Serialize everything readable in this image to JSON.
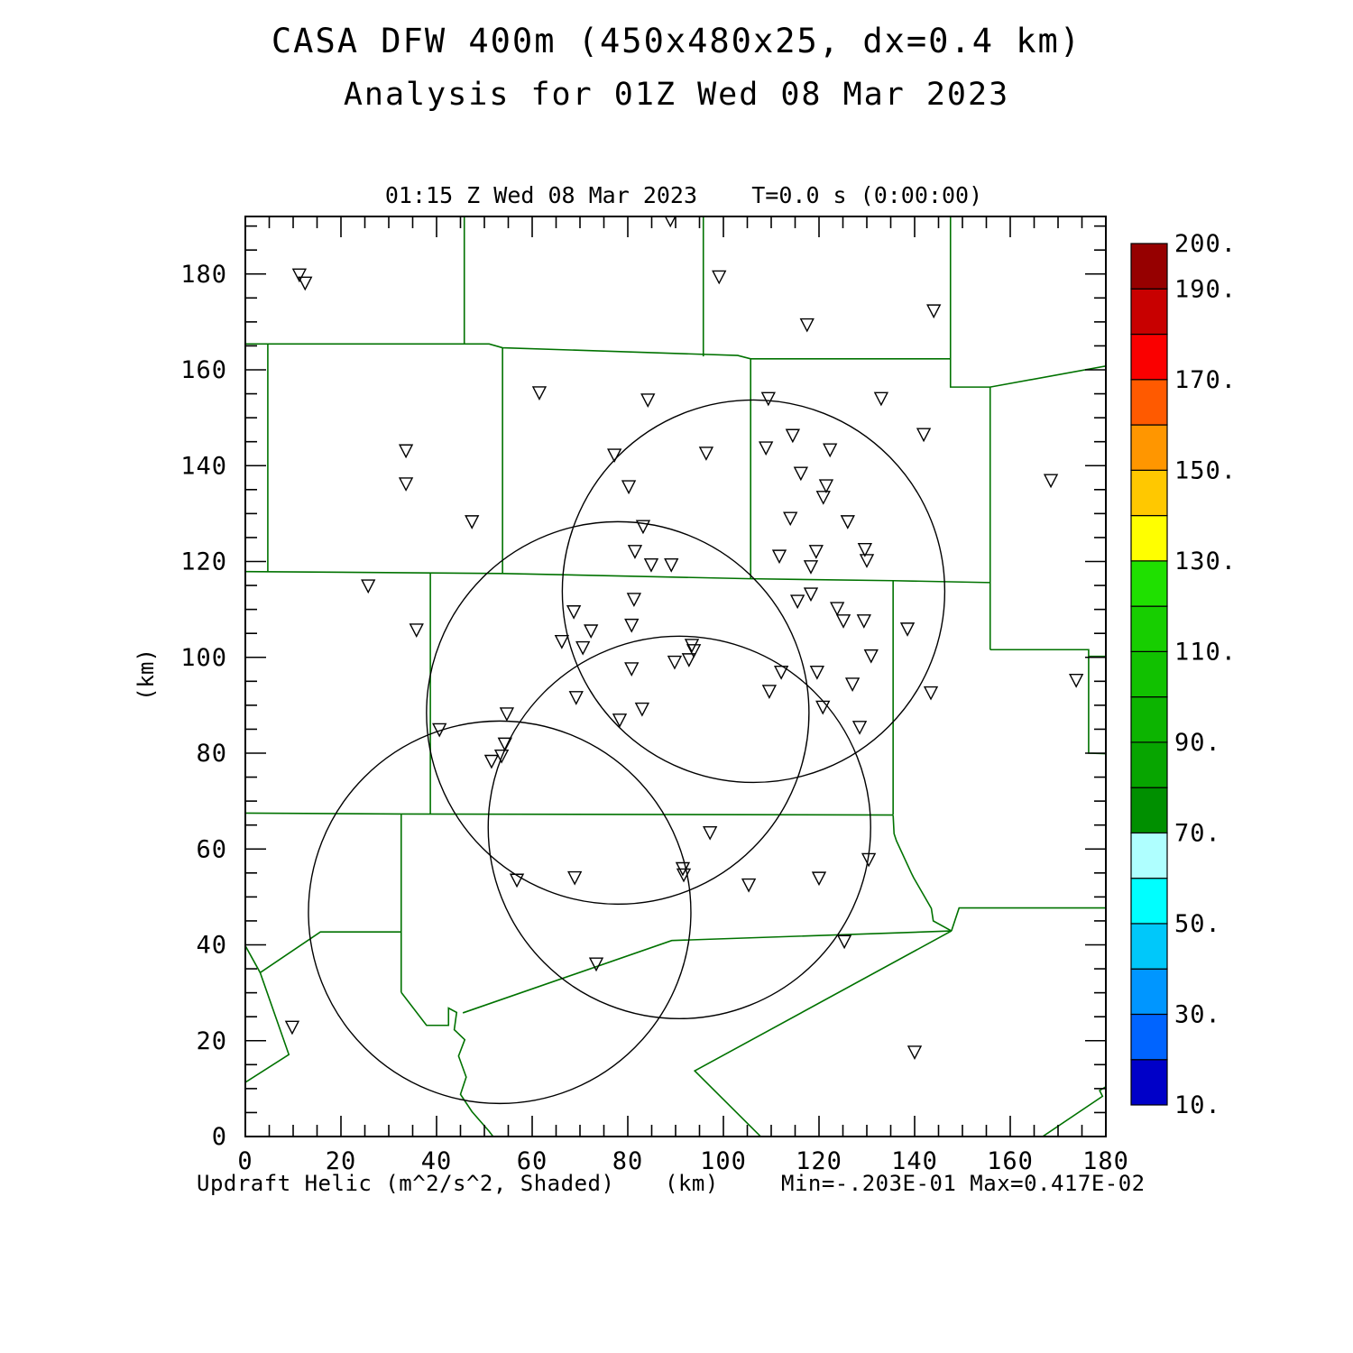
{
  "header": {
    "title": "CASA DFW 400m (450x480x25, dx=0.4 km)",
    "subtitle": "Analysis for 01Z Wed 08 Mar 2023"
  },
  "plot": {
    "time_label": "01:15 Z Wed 08 Mar 2023    T=0.0 s (0:00:00)",
    "y_unit": "(km)",
    "x_unit": "(km)"
  },
  "footer": {
    "field_label": "Updraft Helic (m^2/s^2, Shaded)",
    "x_unit": "(km)",
    "minmax": "Min=-.203E-01 Max=0.417E-02"
  },
  "colors": {
    "county_line": "#007200",
    "frame": "#000000",
    "marker": "#000000",
    "circle": "#000000",
    "text": "#000000",
    "background": "#ffffff"
  },
  "chart_data": {
    "type": "scatter",
    "title": "CASA DFW 400m (450x480x25, dx=0.4 km)",
    "subtitle": "Analysis for 01Z Wed 08 Mar 2023",
    "time_annotation": "01:15 Z Wed 08 Mar 2023    T=0.0 s (0:00:00)",
    "field": "Updraft Helic (m^2/s^2, Shaded)",
    "min_annotation": "Min=-.203E-01",
    "max_annotation": "Max=0.417E-02",
    "xlabel": "(km)",
    "ylabel": "(km)",
    "xlim": [
      0,
      180
    ],
    "ylim": [
      0,
      192
    ],
    "x_major_tick": 20,
    "x_minor_tick": 5,
    "y_major_tick": 20,
    "y_minor_tick": 5,
    "x_tick_labels": [
      0,
      20,
      40,
      60,
      80,
      100,
      120,
      140,
      160,
      180
    ],
    "y_tick_labels": [
      0,
      20,
      40,
      60,
      80,
      100,
      120,
      140,
      160,
      180
    ],
    "grid": false,
    "colorbar": {
      "min": 10,
      "max": 200,
      "step": 10,
      "labeled_values": [
        200,
        190,
        170,
        150,
        130,
        110,
        90,
        70,
        50,
        30,
        10
      ],
      "cell_colors_bottom_to_top": [
        "#0000C8",
        "#0064FF",
        "#0096FF",
        "#00C8FA",
        "#00FFFF",
        "#AFFFFF",
        "#008F00",
        "#07A500",
        "#0CB400",
        "#11C100",
        "#17CE00",
        "#1FE000",
        "#FFFF00",
        "#FFC800",
        "#FF9600",
        "#FF5A00",
        "#FA0000",
        "#C80000",
        "#960000"
      ]
    },
    "radar_range_rings_km": {
      "radius": 40,
      "centers": [
        [
          106.3,
          113.8
        ],
        [
          77.9,
          88.4
        ],
        [
          90.8,
          64.5
        ],
        [
          53.2,
          46.8
        ]
      ]
    },
    "marker_symbol": "open-down-triangle",
    "markers_km": [
      [
        11.3,
        179.9
      ],
      [
        12.5,
        178.2
      ],
      [
        88.9,
        191.4
      ],
      [
        99.1,
        179.5
      ],
      [
        144.0,
        172.4
      ],
      [
        117.5,
        169.5
      ],
      [
        61.5,
        155.3
      ],
      [
        109.4,
        154.1
      ],
      [
        84.2,
        153.8
      ],
      [
        133.0,
        154.1
      ],
      [
        141.9,
        146.6
      ],
      [
        114.5,
        146.4
      ],
      [
        33.6,
        143.2
      ],
      [
        108.9,
        143.8
      ],
      [
        96.4,
        142.7
      ],
      [
        122.3,
        143.4
      ],
      [
        116.2,
        138.5
      ],
      [
        33.6,
        136.3
      ],
      [
        168.5,
        137.0
      ],
      [
        77.2,
        142.3
      ],
      [
        121.5,
        135.9
      ],
      [
        120.9,
        133.5
      ],
      [
        80.2,
        135.7
      ],
      [
        47.4,
        128.4
      ],
      [
        114.0,
        129.1
      ],
      [
        83.2,
        127.4
      ],
      [
        126.0,
        128.4
      ],
      [
        81.5,
        122.2
      ],
      [
        111.7,
        121.2
      ],
      [
        119.4,
        122.2
      ],
      [
        84.9,
        119.4
      ],
      [
        89.1,
        119.4
      ],
      [
        129.6,
        122.6
      ],
      [
        118.3,
        119.0
      ],
      [
        130.0,
        120.3
      ],
      [
        25.7,
        115.0
      ],
      [
        81.3,
        112.2
      ],
      [
        115.5,
        111.8
      ],
      [
        118.3,
        113.3
      ],
      [
        68.7,
        109.6
      ],
      [
        123.8,
        110.3
      ],
      [
        125.1,
        107.7
      ],
      [
        35.8,
        105.8
      ],
      [
        72.3,
        105.6
      ],
      [
        80.8,
        106.8
      ],
      [
        129.4,
        107.7
      ],
      [
        138.5,
        106.0
      ],
      [
        66.2,
        103.4
      ],
      [
        70.6,
        102.1
      ],
      [
        93.4,
        102.6
      ],
      [
        93.8,
        101.5
      ],
      [
        130.9,
        100.4
      ],
      [
        80.8,
        97.7
      ],
      [
        89.8,
        99.1
      ],
      [
        92.8,
        99.6
      ],
      [
        112.1,
        97.0
      ],
      [
        119.6,
        97.0
      ],
      [
        127.0,
        94.5
      ],
      [
        173.8,
        95.3
      ],
      [
        69.2,
        91.7
      ],
      [
        109.6,
        93.0
      ],
      [
        143.4,
        92.7
      ],
      [
        83.0,
        89.3
      ],
      [
        54.7,
        88.3
      ],
      [
        78.3,
        87.0
      ],
      [
        120.8,
        89.7
      ],
      [
        128.5,
        85.5
      ],
      [
        40.6,
        85.0
      ],
      [
        54.3,
        82.0
      ],
      [
        53.6,
        79.5
      ],
      [
        51.5,
        78.4
      ],
      [
        97.2,
        63.5
      ],
      [
        130.4,
        57.9
      ],
      [
        91.5,
        56.0
      ],
      [
        91.7,
        54.7
      ],
      [
        56.8,
        53.6
      ],
      [
        68.9,
        54.1
      ],
      [
        105.3,
        52.6
      ],
      [
        120.0,
        54.0
      ],
      [
        125.3,
        40.8
      ],
      [
        73.4,
        36.1
      ],
      [
        9.8,
        22.9
      ],
      [
        140.0,
        17.7
      ]
    ],
    "county_polylines_km": [
      [
        [
          45.8,
          192
        ],
        [
          45.8,
          165.3
        ]
      ],
      [
        [
          0,
          165.4
        ],
        [
          51,
          165.4
        ],
        [
          53.8,
          164.6
        ],
        [
          103,
          163
        ],
        [
          105.7,
          162.3
        ],
        [
          147.5,
          162.3
        ]
      ],
      [
        [
          95.8,
          192
        ],
        [
          95.8,
          162.8
        ]
      ],
      [
        [
          4.7,
          165.4
        ],
        [
          4.7,
          117.8
        ]
      ],
      [
        [
          53.8,
          164.6
        ],
        [
          53.8,
          117.6
        ]
      ],
      [
        [
          147.5,
          192
        ],
        [
          147.5,
          156.4
        ],
        [
          155.8,
          156.4
        ],
        [
          180,
          160.8
        ]
      ],
      [
        [
          105.7,
          162.3
        ],
        [
          105.7,
          116.4
        ]
      ],
      [
        [
          0,
          117.9
        ],
        [
          53.8,
          117.5
        ],
        [
          105.7,
          116.4
        ],
        [
          135.5,
          116.0
        ],
        [
          155.8,
          115.6
        ]
      ],
      [
        [
          155.8,
          156.4
        ],
        [
          155.8,
          101.6
        ]
      ],
      [
        [
          155.8,
          101.6
        ],
        [
          176.4,
          101.6
        ],
        [
          176.4,
          100.2
        ],
        [
          180,
          100.2
        ]
      ],
      [
        [
          135.5,
          116.0
        ],
        [
          135.5,
          67.2
        ]
      ],
      [
        [
          176.4,
          100.2
        ],
        [
          176.4,
          80.0
        ],
        [
          180,
          79.9
        ]
      ],
      [
        [
          0,
          67.5
        ],
        [
          32.6,
          67.3
        ],
        [
          135.5,
          67.1
        ]
      ],
      [
        [
          38.7,
          117.7
        ],
        [
          38.7,
          67.4
        ]
      ],
      [
        [
          32.6,
          67.3
        ],
        [
          32.6,
          30.1
        ]
      ],
      [
        [
          32.6,
          30.1
        ],
        [
          37.9,
          23.2
        ],
        [
          42.5,
          23.2
        ],
        [
          42.5,
          26.8
        ],
        [
          44.2,
          25.9
        ],
        [
          43.7,
          22.3
        ],
        [
          45.9,
          20.2
        ],
        [
          44.6,
          16.8
        ],
        [
          46.2,
          12.4
        ],
        [
          45.0,
          8.8
        ],
        [
          47.4,
          5.2
        ],
        [
          50.9,
          1.2
        ],
        [
          52.6,
          -1
        ]
      ],
      [
        [
          45.5,
          25.8
        ],
        [
          89.2,
          40.9
        ],
        [
          147.7,
          42.9
        ]
      ],
      [
        [
          135.5,
          67.1
        ],
        [
          135.7,
          63.2
        ],
        [
          136.2,
          61.7
        ],
        [
          139.3,
          55.0
        ],
        [
          139.8,
          54.0
        ],
        [
          143.5,
          47.6
        ],
        [
          143.9,
          45.0
        ],
        [
          147.7,
          42.9
        ]
      ],
      [
        [
          147.7,
          42.9
        ],
        [
          149.3,
          47.7
        ],
        [
          180,
          47.7
        ]
      ],
      [
        [
          147.7,
          42.9
        ],
        [
          94.0,
          13.7
        ],
        [
          108.8,
          -1
        ]
      ],
      [
        [
          32.6,
          42.7
        ],
        [
          15.7,
          42.7
        ],
        [
          3.1,
          34.2
        ],
        [
          9.1,
          17.1
        ],
        [
          0,
          11.3
        ]
      ],
      [
        [
          3.1,
          34.2
        ],
        [
          0,
          39.8
        ]
      ],
      [
        [
          165.3,
          -1
        ],
        [
          179.3,
          8.4
        ],
        [
          178.7,
          9.6
        ],
        [
          180,
          10.4
        ]
      ]
    ]
  }
}
